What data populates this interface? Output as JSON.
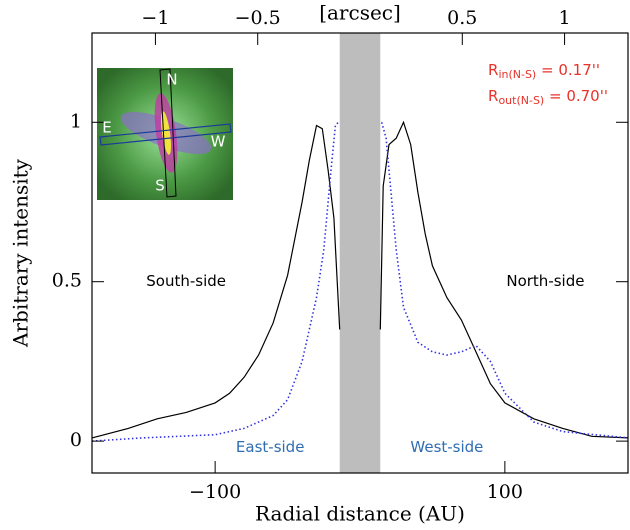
{
  "chart_data": {
    "type": "line",
    "xlabel": "Radial distance (AU)",
    "ylabel": "Arbitrary intensity",
    "x2label": "[arcsec]",
    "xlim": [
      -185,
      185
    ],
    "ylim": [
      -0.1,
      1.28
    ],
    "x2lim": [
      -1.31,
      1.31
    ],
    "xticks": [
      {
        "value": -100,
        "label": "−100"
      },
      {
        "value": 100,
        "label": "100"
      }
    ],
    "yticks": [
      0,
      0.5,
      1
    ],
    "x2ticks": [
      {
        "value": -1,
        "label": "−1"
      },
      {
        "value": -0.5,
        "label": "−0.5"
      },
      0.5,
      1
    ],
    "shaded_region": [
      -14,
      14
    ],
    "shaded_color": "#bdbdbd",
    "series": [
      {
        "color": "#000000",
        "dash": "solid",
        "x": [
          -185,
          -160,
          -140,
          -120,
          -100,
          -90,
          -80,
          -70,
          -60,
          -50,
          -40,
          -35,
          -30,
          -26,
          -22,
          -18,
          -14,
          0,
          14,
          16,
          20,
          25,
          30,
          35,
          40,
          45,
          50,
          60,
          70,
          80,
          90,
          100,
          120,
          140,
          160,
          185
        ],
        "values": [
          0.01,
          0.04,
          0.07,
          0.09,
          0.12,
          0.15,
          0.2,
          0.27,
          0.37,
          0.52,
          0.75,
          0.88,
          0.99,
          0.98,
          0.85,
          0.7,
          0.35,
          null,
          0.35,
          0.8,
          0.93,
          0.95,
          1.0,
          0.93,
          0.78,
          0.65,
          0.55,
          0.45,
          0.38,
          0.28,
          0.18,
          0.12,
          0.07,
          0.04,
          0.015,
          0.01
        ]
      },
      {
        "color": "#3333dd",
        "dash": "dotted",
        "x": [
          -185,
          -150,
          -100,
          -80,
          -60,
          -50,
          -40,
          -30,
          -25,
          -20,
          -17,
          -15,
          0,
          15,
          18,
          22,
          25,
          30,
          40,
          50,
          60,
          70,
          80,
          90,
          100,
          120,
          140,
          185
        ],
        "values": [
          0.0,
          0.01,
          0.02,
          0.04,
          0.08,
          0.13,
          0.25,
          0.45,
          0.6,
          0.85,
          0.99,
          1.0,
          null,
          1.0,
          0.95,
          0.75,
          0.6,
          0.42,
          0.31,
          0.28,
          0.27,
          0.28,
          0.3,
          0.25,
          0.15,
          0.06,
          0.03,
          0.01
        ]
      }
    ],
    "annotations": [
      {
        "text": "South-side",
        "x": -120,
        "y": 0.5,
        "color": "#000000"
      },
      {
        "text": "North-side",
        "x": 128,
        "y": 0.5,
        "color": "#000000"
      },
      {
        "text": "East-side",
        "x": -62,
        "y": -0.02,
        "color": "#2e6db4"
      },
      {
        "text": "West-side",
        "x": 60,
        "y": -0.02,
        "color": "#2e6db4"
      }
    ],
    "radii": [
      {
        "base": "R",
        "sub": "in(N-S)",
        "rest": " = 0.17''"
      },
      {
        "base": "R",
        "sub": "out(N-S)",
        "rest": " = 0.70''"
      }
    ],
    "radii_color": "#e8322a",
    "inset_labels": [
      "N",
      "E",
      "W",
      "S"
    ]
  }
}
